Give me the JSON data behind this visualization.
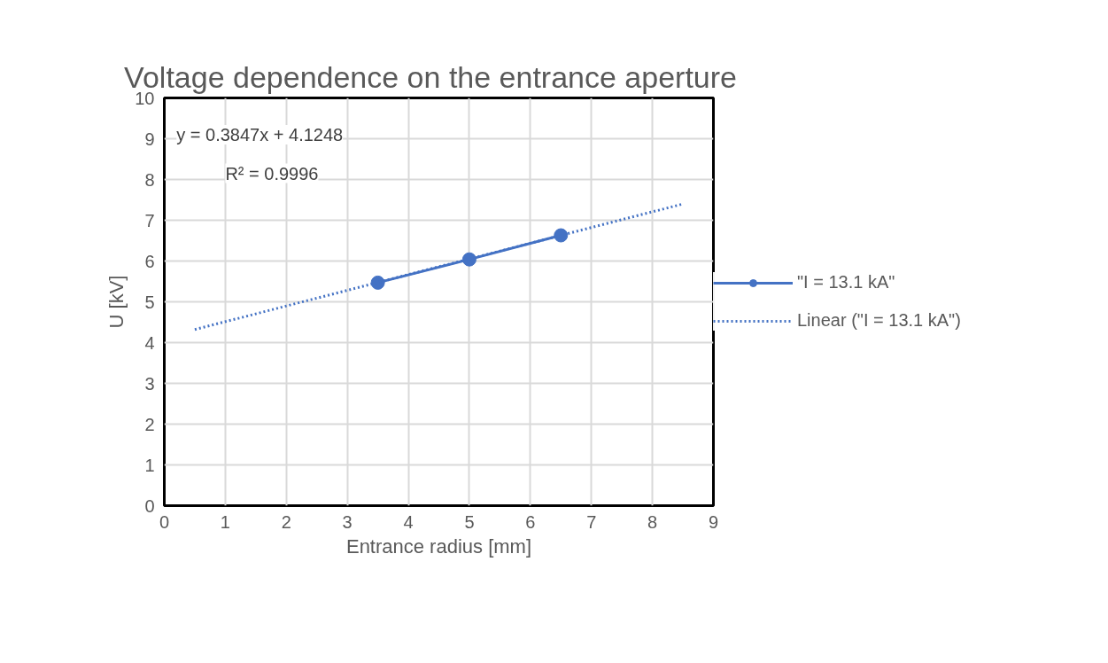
{
  "chart_data": {
    "type": "line",
    "title": "Voltage dependence  on the entrance  aperture",
    "xlabel": "Entrance radius [mm]",
    "ylabel": "U [kV]",
    "xlim": [
      0,
      9
    ],
    "xticks": [
      0,
      1,
      2,
      3,
      4,
      5,
      6,
      7,
      8,
      9
    ],
    "ylim": [
      0,
      10
    ],
    "yticks": [
      0,
      1,
      2,
      3,
      4,
      5,
      6,
      7,
      8,
      9,
      10
    ],
    "grid": true,
    "legend": "right",
    "annotations": [
      "y = 0.3847x + 4.1248",
      "R² = 0.9996"
    ],
    "series": [
      {
        "name": "\"I = 13.1 kA\"",
        "color": "#4472c4",
        "x": [
          3.5,
          5,
          6.5
        ],
        "values": [
          5.47,
          6.04,
          6.63
        ],
        "marker": "circle",
        "line_style": "solid"
      },
      {
        "name": "Linear (\"I = 13.1 kA\")",
        "color": "#4472c4",
        "x": [
          0.5,
          8.5
        ],
        "values": [
          4.32,
          7.4
        ],
        "marker": "none",
        "line_style": "dotted"
      }
    ]
  }
}
